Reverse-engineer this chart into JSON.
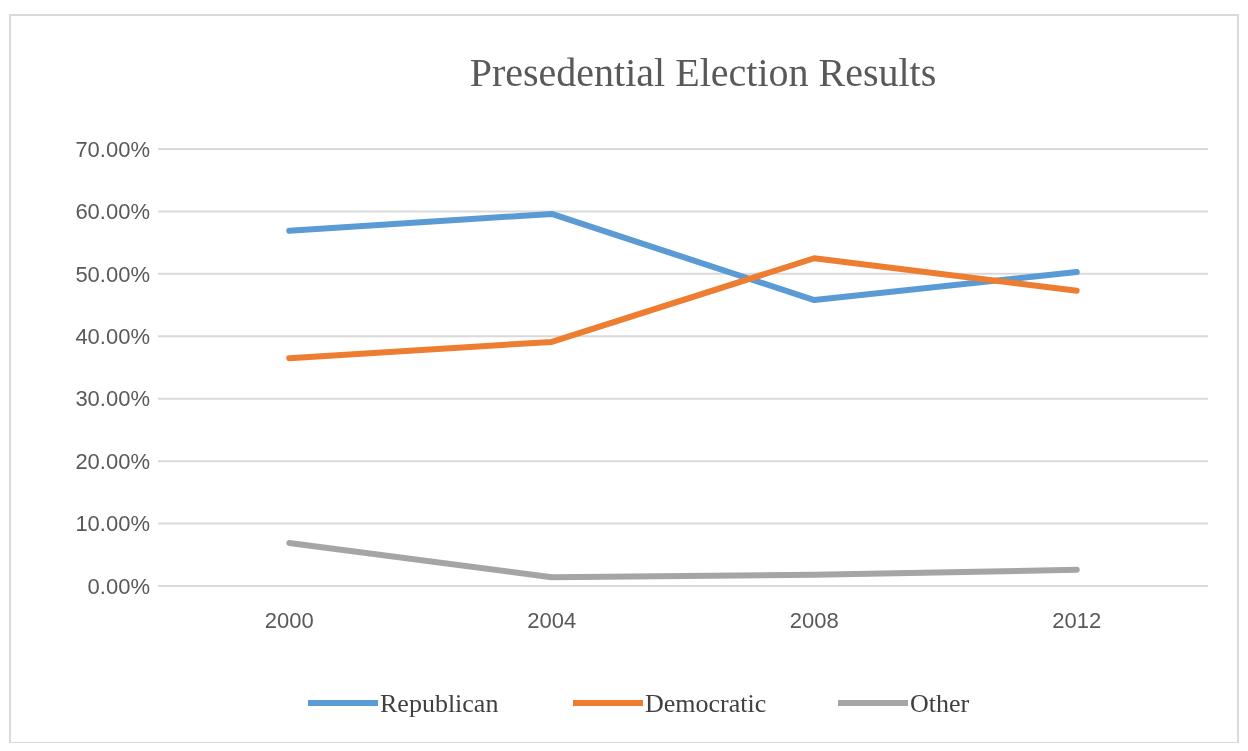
{
  "chart_data": {
    "type": "line",
    "title": "Presedential Election Results",
    "categories": [
      "2000",
      "2004",
      "2008",
      "2012"
    ],
    "series": [
      {
        "name": "Republican",
        "color": "#5b9bd5",
        "values": [
          56.9,
          59.6,
          45.8,
          50.3
        ]
      },
      {
        "name": "Democratic",
        "color": "#ed7d31",
        "values": [
          36.5,
          39.1,
          52.5,
          47.3
        ]
      },
      {
        "name": "Other",
        "color": "#a5a5a5",
        "values": [
          6.9,
          1.4,
          1.8,
          2.6
        ]
      }
    ],
    "ylim": [
      0,
      70
    ],
    "yticks": [
      {
        "value": 0,
        "label": "0.00%"
      },
      {
        "value": 10,
        "label": "10.00%"
      },
      {
        "value": 20,
        "label": "20.00%"
      },
      {
        "value": 30,
        "label": "30.00%"
      },
      {
        "value": 40,
        "label": "40.00%"
      },
      {
        "value": 50,
        "label": "50.00%"
      },
      {
        "value": 60,
        "label": "60.00%"
      },
      {
        "value": 70,
        "label": "70.00%"
      }
    ],
    "grid": "y",
    "legend": "bottom",
    "marker": "none",
    "line_style": "solid"
  }
}
